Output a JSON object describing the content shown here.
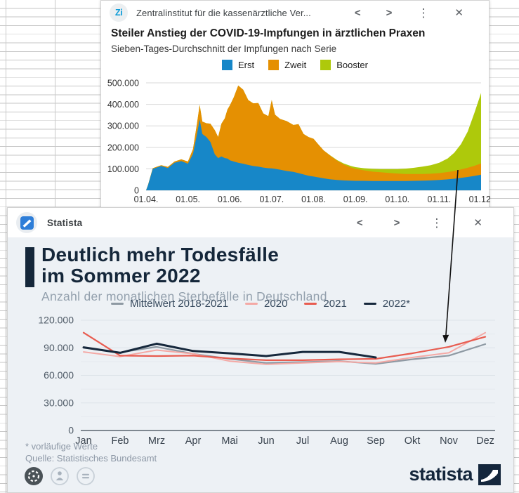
{
  "icons": {
    "back": "<",
    "forward": ">",
    "menu": "⋮",
    "close": "✕"
  },
  "zi_card": {
    "header": {
      "logo_text": "Zi",
      "title": "Zentralinstitut für die kassenärztliche Ver..."
    },
    "title": "Steiler Anstieg der COVID-19-Impfungen in ärztlichen Praxen",
    "subtitle": "Sieben-Tages-Durchschnitt der Impfungen nach Serie"
  },
  "statista_card": {
    "header": {
      "title": "Statista"
    },
    "title_line1": "Deutlich mehr Todesfälle",
    "title_line2": "im Sommer 2022",
    "subtitle": "Anzahl der monatlichen Sterbefälle in Deutschland",
    "footnote": "* vorläufige Werte",
    "source": "Quelle: Statistisches Bundesamt",
    "brand": "statista"
  },
  "chart_data": [
    {
      "type": "area",
      "stacked": true,
      "title": "Steiler Anstieg der COVID-19-Impfungen in ärztlichen Praxen",
      "subtitle": "Sieben-Tages-Durchschnitt der Impfungen nach Serie",
      "x_ticks": [
        "01.04.",
        "01.05.",
        "01.06.",
        "01.07.",
        "01.08.",
        "01.09.",
        "01.10.",
        "01.11.",
        "01.12."
      ],
      "y_ticks": [
        "0",
        "100.000",
        "200.000",
        "300.000",
        "400.000",
        "500.000"
      ],
      "ylim": [
        0,
        500000
      ],
      "grid": true,
      "legend_position": "top",
      "x": [
        0.0,
        0.006,
        0.02,
        0.045,
        0.065,
        0.085,
        0.105,
        0.125,
        0.14,
        0.152,
        0.16,
        0.168,
        0.18,
        0.192,
        0.205,
        0.215,
        0.225,
        0.235,
        0.243,
        0.25,
        0.262,
        0.275,
        0.29,
        0.305,
        0.32,
        0.335,
        0.35,
        0.365,
        0.375,
        0.385,
        0.4,
        0.42,
        0.44,
        0.455,
        0.47,
        0.485,
        0.5,
        0.515,
        0.53,
        0.55,
        0.57,
        0.59,
        0.61,
        0.625,
        0.65,
        0.675,
        0.7,
        0.725,
        0.75,
        0.775,
        0.8,
        0.825,
        0.85,
        0.875,
        0.9,
        0.92,
        0.94,
        0.96,
        0.98,
        1.0
      ],
      "series": [
        {
          "name": "Erst",
          "color": "#1787c8",
          "values": [
            0,
            25000,
            100000,
            113000,
            104000,
            128000,
            136000,
            124000,
            170000,
            262000,
            330000,
            262000,
            248000,
            225000,
            168000,
            150000,
            158000,
            150000,
            148000,
            140000,
            134000,
            128000,
            124000,
            118000,
            113000,
            110000,
            106000,
            103000,
            102000,
            100000,
            96000,
            90000,
            86000,
            80000,
            74000,
            68000,
            64000,
            60000,
            56000,
            51000,
            48000,
            46000,
            45000,
            44000,
            44000,
            43000,
            43000,
            43000,
            43000,
            43000,
            44000,
            45000,
            46000,
            48000,
            51000,
            54000,
            58000,
            62000,
            67000,
            73000
          ]
        },
        {
          "name": "Zweit",
          "color": "#e59002",
          "values": [
            0,
            1000,
            3000,
            4000,
            5000,
            6000,
            8000,
            10000,
            22000,
            48000,
            68000,
            58000,
            64000,
            85000,
            112000,
            98000,
            152000,
            185000,
            228000,
            255000,
            300000,
            360000,
            344000,
            302000,
            292000,
            296000,
            252000,
            242000,
            318000,
            252000,
            236000,
            232000,
            218000,
            228000,
            188000,
            180000,
            176000,
            152000,
            130000,
            110000,
            90000,
            74000,
            62000,
            56000,
            49000,
            44000,
            41000,
            38000,
            35000,
            33000,
            32000,
            31000,
            31000,
            32000,
            34000,
            36000,
            39000,
            43000,
            47000,
            52000
          ]
        },
        {
          "name": "Booster",
          "color": "#aec90b",
          "values": [
            0,
            0,
            0,
            0,
            0,
            0,
            0,
            0,
            0,
            0,
            0,
            0,
            0,
            0,
            0,
            0,
            0,
            0,
            0,
            0,
            0,
            0,
            0,
            0,
            0,
            0,
            0,
            0,
            0,
            0,
            0,
            0,
            0,
            0,
            0,
            0,
            0,
            0,
            0,
            1000,
            3000,
            5000,
            7000,
            8000,
            10000,
            13000,
            15000,
            18000,
            21000,
            25000,
            29000,
            34000,
            40000,
            48000,
            63000,
            85000,
            118000,
            168000,
            246000,
            328000
          ]
        }
      ]
    },
    {
      "type": "line",
      "title": "Deutlich mehr Todesfälle im Sommer 2022",
      "subtitle": "Anzahl der monatlichen Sterbefälle in Deutschland",
      "categories": [
        "Jan",
        "Feb",
        "Mrz",
        "Apr",
        "Mai",
        "Jun",
        "Jul",
        "Aug",
        "Sep",
        "Okt",
        "Nov",
        "Dez"
      ],
      "y_ticks": [
        "0",
        "30.000",
        "60.000",
        "90.000",
        "120.000"
      ],
      "ylim": [
        0,
        120000
      ],
      "grid": true,
      "legend_position": "top",
      "series": [
        {
          "name": "Mittelwert 2018-2021",
          "color": "#8e99a3",
          "values": [
            90000,
            85000,
            91000,
            83500,
            78000,
            73500,
            74500,
            75500,
            72500,
            77500,
            81500,
            94000
          ]
        },
        {
          "name": "2020",
          "color": "#f4a9a5",
          "values": [
            85500,
            80500,
            87500,
            83500,
            75500,
            72000,
            73500,
            75000,
            73500,
            79500,
            84500,
            106500
          ]
        },
        {
          "name": "2021",
          "color": "#e85c50",
          "values": [
            106500,
            81500,
            81000,
            81500,
            78500,
            76500,
            76500,
            77500,
            78000,
            84000,
            91000,
            102000
          ]
        },
        {
          "name": "2022*",
          "color": "#16283c",
          "values": [
            90500,
            84500,
            94500,
            86500,
            84000,
            81000,
            85500,
            85500,
            79500,
            null,
            null,
            null
          ]
        }
      ],
      "footnote": "* vorläufige Werte",
      "source": "Quelle: Statistisches Bundesamt"
    }
  ]
}
